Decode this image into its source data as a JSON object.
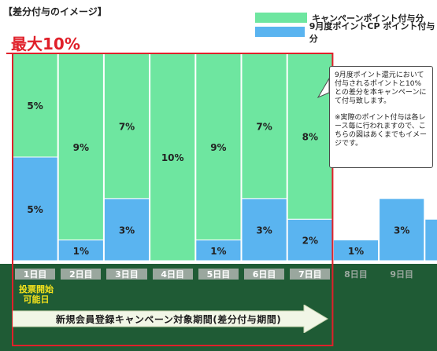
{
  "title": "【差分付与のイメージ】",
  "max_label": "最大10%",
  "legend": [
    {
      "label": "キャンペーンポイント付与分",
      "color": "#6ee6a0"
    },
    {
      "label": "9月度ポイントCP ポイント付与分",
      "color": "#5ab4f0"
    }
  ],
  "note": {
    "p1": "9月度ポイント還元において付与されるポイントと10%との差分を本キャンペーンにて付与致します。",
    "p2": "※実際のポイント付与は各レース毎に行われますので、こちらの図はあくまでもイメージです。"
  },
  "vote_label": "投票開始\n可能日",
  "period_label": "新規会員登録キャンペーン対象期間(差分付与期間)",
  "colors": {
    "campaign": "#6ee6a0",
    "base": "#5ab4f0",
    "band": "#1f5b35",
    "accent": "#e0202a",
    "highlight": "#f4e21c"
  },
  "chart_data": {
    "type": "bar",
    "stacked": true,
    "categories": [
      "1日目",
      "2日目",
      "3日目",
      "4日目",
      "5日目",
      "6日目",
      "7日目",
      "8日目",
      "9日目",
      ""
    ],
    "series": [
      {
        "name": "9月度ポイントCP ポイント付与分",
        "values": [
          5,
          1,
          3,
          0,
          1,
          3,
          2,
          1,
          3,
          2
        ]
      },
      {
        "name": "キャンペーンポイント付与分",
        "values": [
          5,
          9,
          7,
          10,
          9,
          7,
          8,
          0,
          0,
          0
        ]
      }
    ],
    "value_labels": [
      [
        "5%",
        "1%",
        "3%",
        "",
        "1%",
        "3%",
        "2%",
        "1%",
        "3%",
        ""
      ],
      [
        "5%",
        "9%",
        "7%",
        "10%",
        "9%",
        "7%",
        "8%",
        "",
        "",
        ""
      ]
    ],
    "ylim": [
      0,
      10
    ]
  }
}
